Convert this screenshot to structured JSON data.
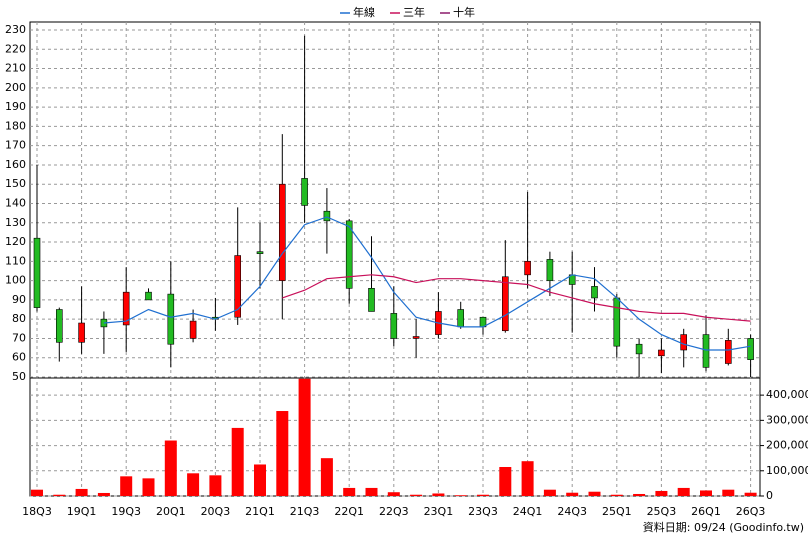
{
  "chart_data": {
    "type": "candlestick",
    "categories": [
      "18Q3",
      null,
      "19Q1",
      null,
      "19Q3",
      null,
      "20Q1",
      null,
      "20Q3",
      null,
      "21Q1",
      null,
      "21Q3",
      null,
      "22Q1",
      null,
      "22Q3",
      null,
      "23Q1",
      null,
      "23Q3",
      null,
      "24Q1",
      null,
      "24Q3",
      null,
      "25Q1",
      null,
      "25Q3",
      null,
      "26Q1",
      null,
      "26Q3"
    ],
    "open": [
      122,
      85,
      68,
      80,
      77,
      94,
      93,
      70,
      81,
      81,
      115,
      100,
      153,
      136,
      131,
      96,
      83,
      70,
      72,
      85,
      81,
      74,
      103,
      111,
      103,
      97,
      91,
      67,
      61,
      64,
      72,
      57,
      70
    ],
    "high": [
      160,
      86,
      97,
      84,
      107,
      96,
      110,
      85,
      91,
      138,
      130,
      176,
      227,
      148,
      132,
      123,
      97,
      80,
      94,
      89,
      81,
      121,
      146,
      115,
      115,
      107,
      93,
      70,
      70,
      75,
      82,
      75,
      72
    ],
    "low": [
      84,
      58,
      62,
      62,
      63,
      90,
      55,
      68,
      74,
      77,
      96,
      80,
      130,
      114,
      88,
      84,
      66,
      60,
      70,
      75,
      72,
      73,
      96,
      92,
      73,
      84,
      60,
      50,
      52,
      55,
      53,
      56,
      50
    ],
    "close": [
      86,
      68,
      78,
      76,
      94,
      90,
      67,
      79,
      80,
      113,
      114,
      150,
      139,
      131,
      96,
      84,
      70,
      71,
      84,
      76,
      76,
      102,
      110,
      100,
      98,
      91,
      66,
      62,
      64,
      72,
      55,
      69,
      59
    ],
    "up_color": "#ff0000",
    "down_color": "#22bb22",
    "ylim": [
      50,
      230
    ],
    "yticks": [
      50,
      60,
      70,
      80,
      90,
      100,
      110,
      120,
      130,
      140,
      150,
      160,
      170,
      180,
      190,
      200,
      210,
      220,
      230
    ],
    "series": [
      {
        "name": "年線",
        "color": "#1f6fd0",
        "values": [
          null,
          null,
          null,
          78,
          79,
          85,
          81,
          83,
          80,
          85,
          97,
          114,
          129,
          133,
          128,
          112,
          94,
          81,
          78,
          76,
          76,
          82,
          89,
          96,
          103,
          101,
          91,
          80,
          72,
          67,
          64,
          64,
          66
        ]
      },
      {
        "name": "三年",
        "color": "#c8105a",
        "values": [
          null,
          null,
          null,
          null,
          null,
          null,
          null,
          null,
          null,
          null,
          null,
          91,
          95,
          101,
          102,
          103,
          102,
          99,
          101,
          101,
          100,
          99,
          98,
          94,
          91,
          88,
          86,
          84,
          83,
          83,
          81,
          80,
          79
        ]
      },
      {
        "name": "十年",
        "color": "#8b1a6b",
        "values": [
          null,
          null,
          null,
          null,
          null,
          null,
          null,
          null,
          null,
          null,
          null,
          null,
          null,
          null,
          null,
          null,
          null,
          null,
          null,
          null,
          null,
          null,
          null,
          null,
          null,
          null,
          null,
          null,
          null,
          null,
          null,
          null,
          null
        ]
      }
    ],
    "volume": {
      "color": "#ff0000",
      "values": [
        25000,
        5000,
        28000,
        12000,
        78000,
        70000,
        220000,
        90000,
        82000,
        270000,
        125000,
        337000,
        465000,
        150000,
        32000,
        32000,
        15000,
        5000,
        10000,
        3000,
        5000,
        115000,
        138000,
        25000,
        13000,
        17000,
        5000,
        8000,
        20000,
        32000,
        22000,
        25000,
        13000
      ],
      "ylim": [
        0,
        460000
      ],
      "yticks": [
        0,
        {
          "value": 100000,
          "label": "100,000"
        },
        {
          "value": 200000,
          "label": "200,000"
        },
        {
          "value": 300000,
          "label": "300,000"
        },
        {
          "value": 400000,
          "label": "400,000"
        }
      ]
    },
    "footer": "資料日期: 09/24 (Goodinfo.tw)",
    "grid": true
  }
}
